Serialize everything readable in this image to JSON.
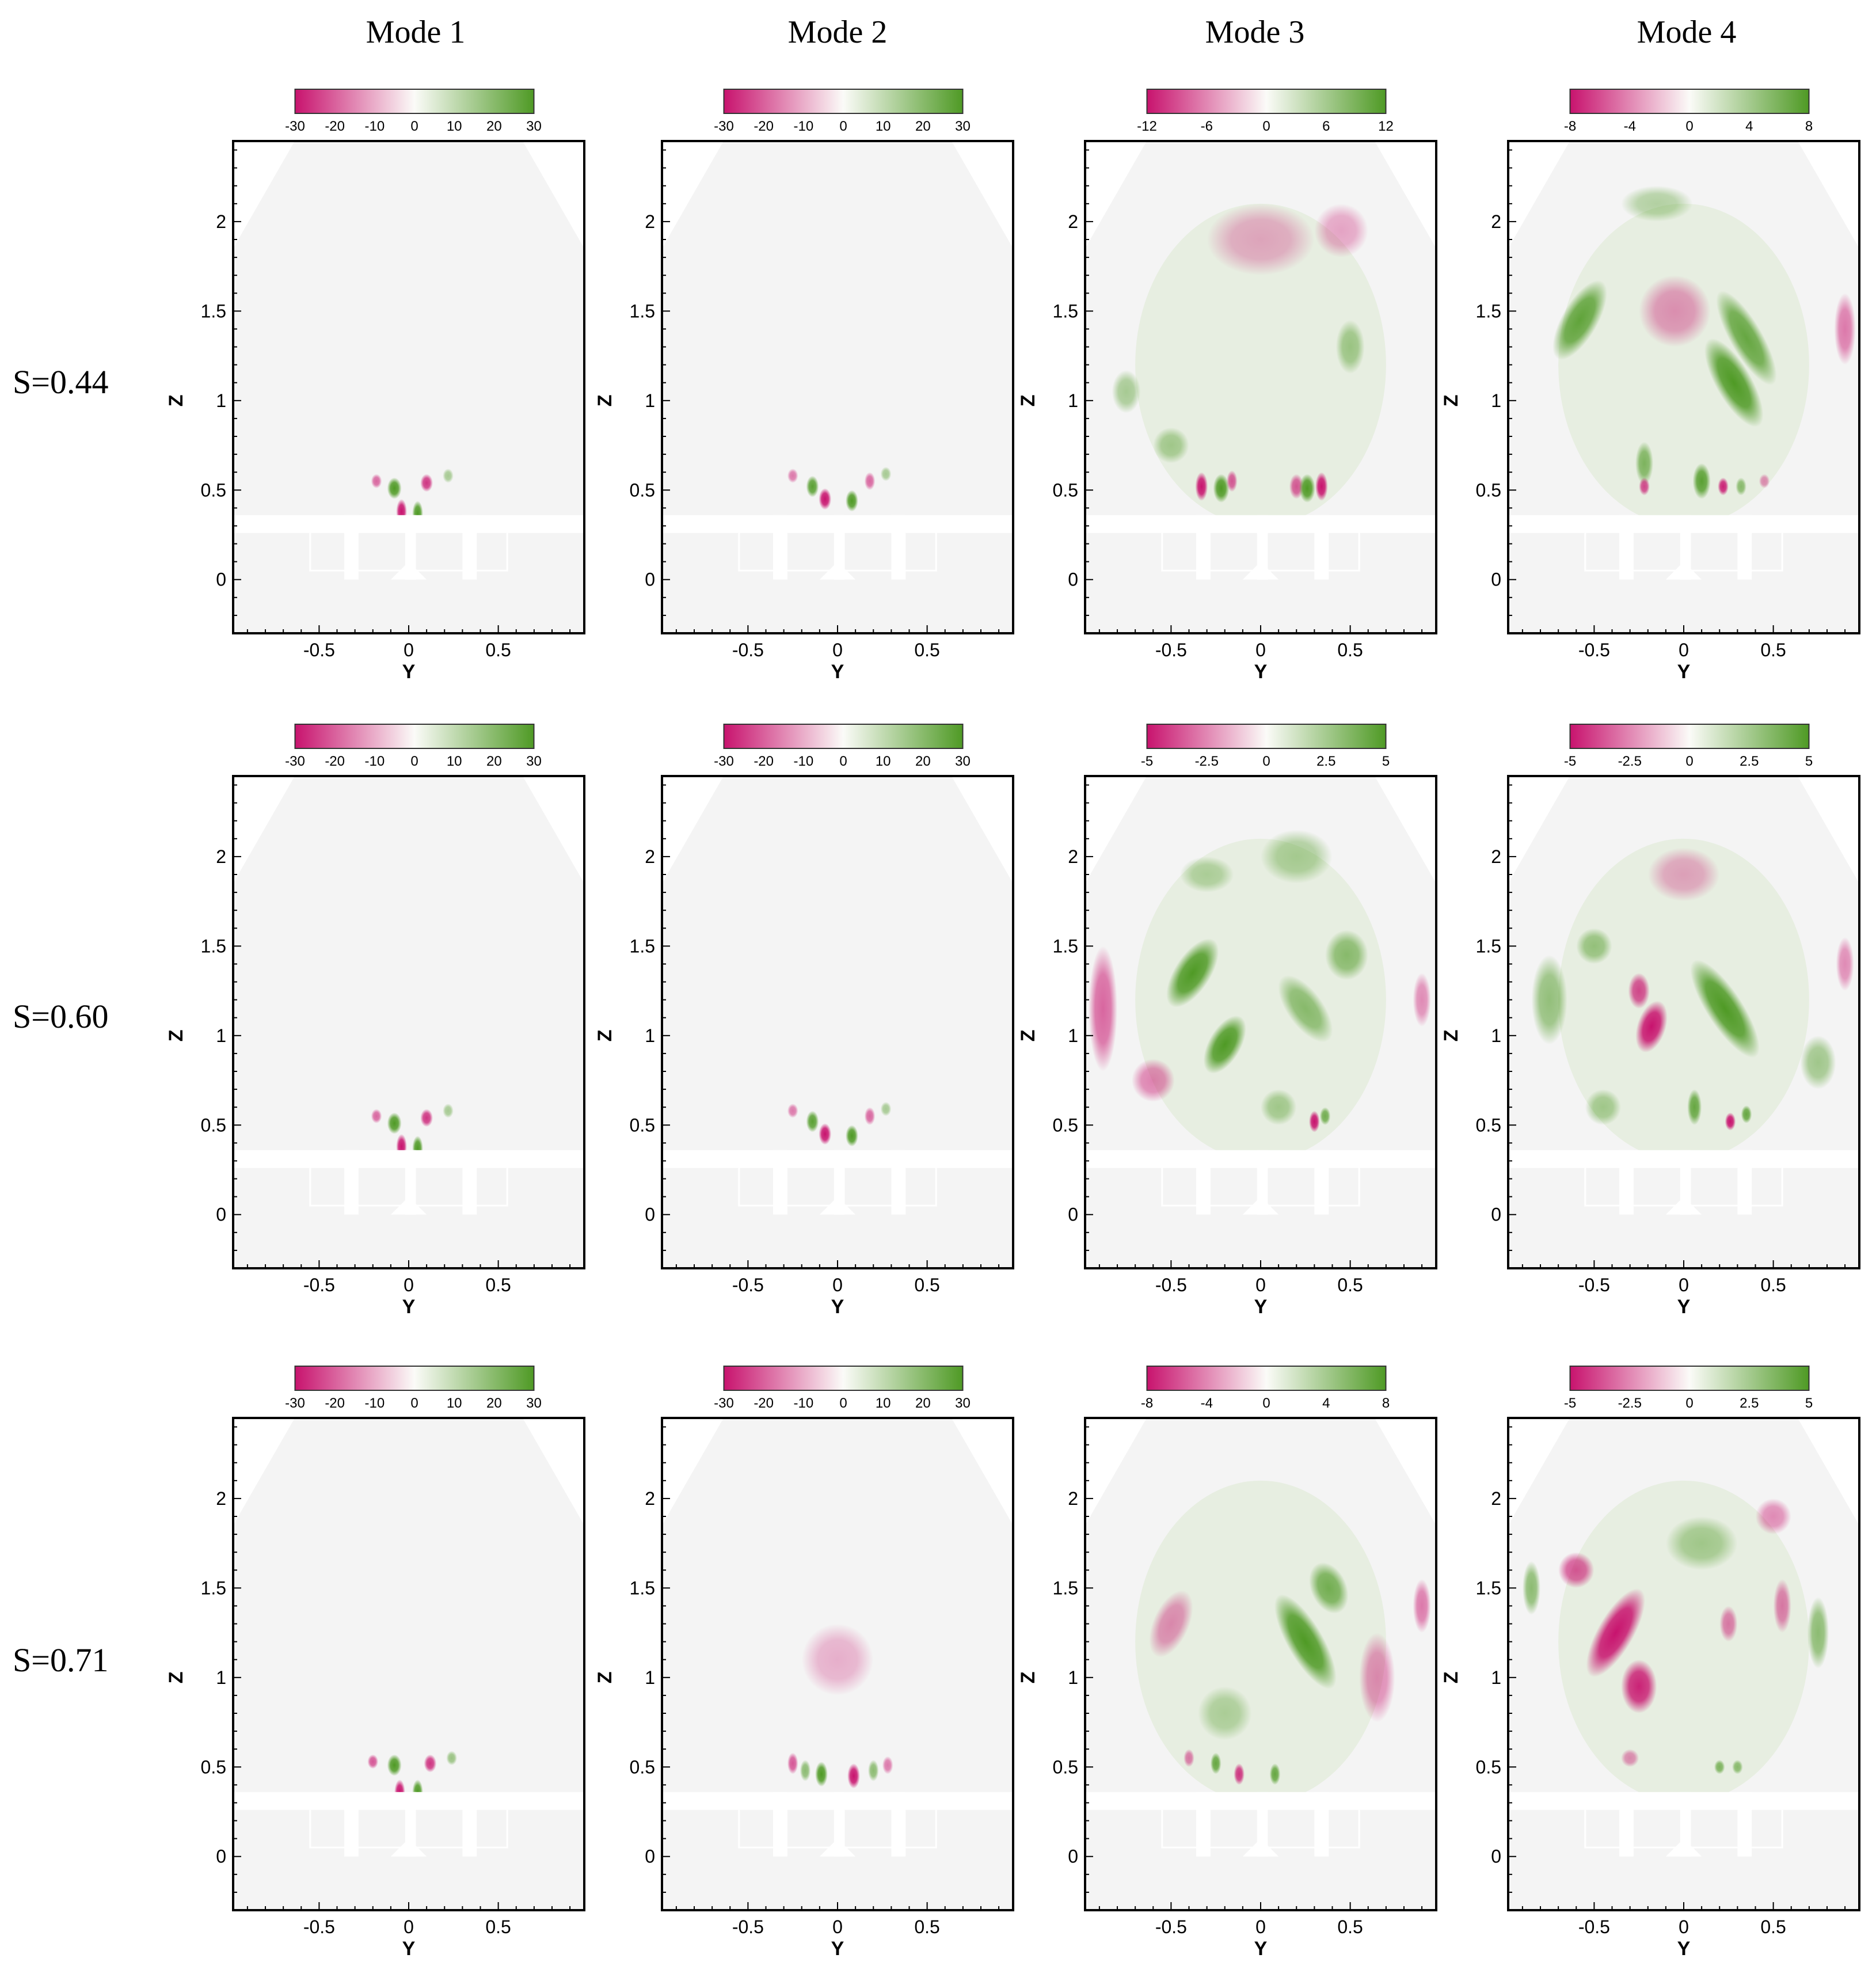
{
  "figure": {
    "mode_titles": [
      "Mode 1",
      "Mode 2",
      "Mode 3",
      "Mode 4"
    ],
    "row_labels": [
      "S=0.44",
      "S=0.60",
      "S=0.71"
    ],
    "colors": {
      "negative": "#c8136e",
      "neutral": "#fbfbf8",
      "positive": "#4f9a25",
      "background": "#f4f4f4",
      "frame": "#000000"
    },
    "axes": {
      "xlabel": "Y",
      "ylabel": "Z",
      "x_range": [
        -0.98,
        0.98
      ],
      "y_range": [
        -0.3,
        2.45
      ],
      "x_ticks": [
        "-0.5",
        "0",
        "0.5"
      ],
      "x_tick_values": [
        -0.5,
        0,
        0.5
      ],
      "y_ticks": [
        "0",
        "0.5",
        "1",
        "1.5",
        "2"
      ],
      "y_tick_values": [
        0,
        0.5,
        1,
        1.5,
        2
      ]
    },
    "panels": [
      [
        {
          "colorbar": [
            "-30",
            "-20",
            "-10",
            "0",
            "10",
            "20",
            "30"
          ],
          "blobs": [
            [
              -0.18,
              0.55,
              0.03,
              0.04,
              -0.5
            ],
            [
              -0.08,
              0.51,
              0.04,
              0.06,
              1
            ],
            [
              0.1,
              0.54,
              0.035,
              0.05,
              -0.8
            ],
            [
              -0.04,
              0.38,
              0.03,
              0.07,
              -1
            ],
            [
              0.05,
              0.37,
              0.03,
              0.07,
              1
            ],
            [
              0.22,
              0.58,
              0.03,
              0.04,
              0.3
            ]
          ]
        },
        {
          "colorbar": [
            "-30",
            "-20",
            "-10",
            "0",
            "10",
            "20",
            "30"
          ],
          "blobs": [
            [
              -0.25,
              0.58,
              0.03,
              0.04,
              -0.4
            ],
            [
              -0.14,
              0.52,
              0.035,
              0.06,
              0.9
            ],
            [
              -0.07,
              0.45,
              0.035,
              0.06,
              -1
            ],
            [
              0.08,
              0.44,
              0.035,
              0.06,
              1
            ],
            [
              0.18,
              0.55,
              0.03,
              0.05,
              -0.5
            ],
            [
              0.27,
              0.59,
              0.03,
              0.04,
              0.3
            ]
          ]
        },
        {
          "colorbar": [
            "-12",
            "-6",
            "0",
            "6",
            "12"
          ],
          "blobs": [
            [
              -0.33,
              0.52,
              0.035,
              0.08,
              -1
            ],
            [
              -0.22,
              0.51,
              0.045,
              0.08,
              1
            ],
            [
              -0.16,
              0.55,
              0.03,
              0.06,
              -0.6
            ],
            [
              0.2,
              0.52,
              0.04,
              0.07,
              -0.6
            ],
            [
              0.26,
              0.51,
              0.045,
              0.08,
              1
            ],
            [
              0.34,
              0.52,
              0.035,
              0.08,
              -1
            ],
            [
              -0.5,
              0.75,
              0.1,
              0.1,
              0.3
            ],
            [
              0.5,
              1.3,
              0.08,
              0.15,
              0.35
            ],
            [
              -0.75,
              1.05,
              0.08,
              0.12,
              0.3
            ],
            [
              0.0,
              1.9,
              0.3,
              0.2,
              -0.12
            ],
            [
              0.45,
              1.95,
              0.15,
              0.15,
              -0.15
            ]
          ]
        },
        {
          "colorbar": [
            "-8",
            "-4",
            "0",
            "4",
            "8"
          ],
          "blobs": [
            [
              -0.58,
              1.45,
              0.1,
              0.25,
              0.85,
              0.5
            ],
            [
              0.28,
              1.1,
              0.1,
              0.28,
              1,
              -0.5
            ],
            [
              0.35,
              1.35,
              0.09,
              0.3,
              0.8,
              -0.5
            ],
            [
              -0.22,
              0.65,
              0.05,
              0.12,
              0.6
            ],
            [
              -0.22,
              0.52,
              0.03,
              0.05,
              -0.7
            ],
            [
              0.1,
              0.55,
              0.05,
              0.1,
              0.9
            ],
            [
              0.22,
              0.52,
              0.03,
              0.05,
              -0.9
            ],
            [
              0.32,
              0.52,
              0.03,
              0.05,
              0.5
            ],
            [
              0.45,
              0.55,
              0.03,
              0.04,
              -0.3
            ],
            [
              -0.05,
              1.5,
              0.2,
              0.2,
              -0.25
            ],
            [
              0.9,
              1.4,
              0.06,
              0.2,
              -0.4
            ],
            [
              -0.15,
              2.1,
              0.2,
              0.1,
              0.2
            ]
          ]
        }
      ],
      [
        {
          "colorbar": [
            "-30",
            "-20",
            "-10",
            "0",
            "10",
            "20",
            "30"
          ],
          "blobs": [
            [
              -0.18,
              0.55,
              0.03,
              0.04,
              -0.5
            ],
            [
              -0.08,
              0.51,
              0.04,
              0.06,
              1
            ],
            [
              0.1,
              0.54,
              0.035,
              0.05,
              -0.8
            ],
            [
              -0.04,
              0.38,
              0.03,
              0.07,
              -1
            ],
            [
              0.05,
              0.37,
              0.03,
              0.07,
              1
            ],
            [
              0.22,
              0.58,
              0.03,
              0.04,
              0.3
            ]
          ]
        },
        {
          "colorbar": [
            "-30",
            "-20",
            "-10",
            "0",
            "10",
            "20",
            "30"
          ],
          "blobs": [
            [
              -0.25,
              0.58,
              0.03,
              0.04,
              -0.4
            ],
            [
              -0.14,
              0.52,
              0.035,
              0.06,
              0.9
            ],
            [
              -0.07,
              0.45,
              0.035,
              0.06,
              -1
            ],
            [
              0.08,
              0.44,
              0.035,
              0.06,
              1
            ],
            [
              0.18,
              0.55,
              0.03,
              0.05,
              -0.5
            ],
            [
              0.27,
              0.59,
              0.03,
              0.04,
              0.3
            ]
          ]
        },
        {
          "colorbar": [
            "-5",
            "-2.5",
            "0",
            "2.5",
            "5"
          ],
          "blobs": [
            [
              -0.38,
              1.35,
              0.1,
              0.22,
              1,
              0.55
            ],
            [
              -0.2,
              0.95,
              0.09,
              0.18,
              1,
              0.5
            ],
            [
              0.25,
              1.15,
              0.1,
              0.22,
              0.5,
              -0.6
            ],
            [
              0.48,
              1.45,
              0.12,
              0.14,
              0.5
            ],
            [
              0.3,
              0.52,
              0.03,
              0.06,
              -1
            ],
            [
              0.36,
              0.55,
              0.03,
              0.05,
              0.7
            ],
            [
              -0.88,
              1.15,
              0.08,
              0.35,
              -0.5
            ],
            [
              -0.6,
              0.75,
              0.12,
              0.12,
              -0.35
            ],
            [
              0.1,
              0.6,
              0.1,
              0.1,
              0.3
            ],
            [
              0.2,
              2.0,
              0.2,
              0.15,
              0.25
            ],
            [
              0.9,
              1.2,
              0.05,
              0.15,
              -0.3
            ],
            [
              -0.3,
              1.9,
              0.15,
              0.1,
              0.2
            ]
          ]
        },
        {
          "colorbar": [
            "-5",
            "-2.5",
            "0",
            "2.5",
            "5"
          ],
          "blobs": [
            [
              0.23,
              1.15,
              0.1,
              0.32,
              1,
              -0.55
            ],
            [
              -0.18,
              1.05,
              0.08,
              0.15,
              -1,
              0.3
            ],
            [
              -0.25,
              1.25,
              0.06,
              0.1,
              -0.7
            ],
            [
              -0.5,
              1.5,
              0.1,
              0.1,
              0.4
            ],
            [
              -0.75,
              1.2,
              0.1,
              0.25,
              0.45
            ],
            [
              0.26,
              0.52,
              0.03,
              0.05,
              -1
            ],
            [
              0.35,
              0.56,
              0.03,
              0.05,
              0.8
            ],
            [
              0.06,
              0.6,
              0.04,
              0.1,
              0.8
            ],
            [
              -0.45,
              0.6,
              0.1,
              0.1,
              0.3
            ],
            [
              0.75,
              0.85,
              0.1,
              0.15,
              0.35
            ],
            [
              0.9,
              1.4,
              0.05,
              0.15,
              -0.3
            ],
            [
              0.0,
              1.9,
              0.2,
              0.15,
              -0.15
            ]
          ]
        }
      ],
      [
        {
          "colorbar": [
            "-30",
            "-20",
            "-10",
            "0",
            "10",
            "20",
            "30"
          ],
          "blobs": [
            [
              -0.2,
              0.53,
              0.03,
              0.04,
              -0.6
            ],
            [
              -0.08,
              0.51,
              0.04,
              0.06,
              1
            ],
            [
              0.12,
              0.52,
              0.035,
              0.05,
              -0.8
            ],
            [
              -0.05,
              0.36,
              0.03,
              0.07,
              -1
            ],
            [
              0.05,
              0.36,
              0.03,
              0.07,
              1
            ],
            [
              0.24,
              0.55,
              0.03,
              0.04,
              0.4
            ]
          ]
        },
        {
          "colorbar": [
            "-30",
            "-20",
            "-10",
            "0",
            "10",
            "20",
            "30"
          ],
          "blobs": [
            [
              -0.25,
              0.52,
              0.03,
              0.06,
              -0.6
            ],
            [
              -0.18,
              0.48,
              0.03,
              0.06,
              0.5
            ],
            [
              -0.09,
              0.46,
              0.035,
              0.07,
              1
            ],
            [
              0.09,
              0.45,
              0.035,
              0.07,
              -1
            ],
            [
              0.2,
              0.48,
              0.03,
              0.06,
              0.5
            ],
            [
              0.28,
              0.51,
              0.03,
              0.05,
              -0.4
            ],
            [
              0.0,
              1.1,
              0.2,
              0.2,
              -0.08
            ]
          ]
        },
        {
          "colorbar": [
            "-8",
            "-4",
            "0",
            "4",
            "8"
          ],
          "blobs": [
            [
              0.25,
              1.2,
              0.1,
              0.3,
              1,
              -0.5
            ],
            [
              0.38,
              1.5,
              0.1,
              0.15,
              0.7,
              -0.4
            ],
            [
              -0.25,
              0.52,
              0.03,
              0.06,
              0.8
            ],
            [
              -0.12,
              0.46,
              0.03,
              0.06,
              -0.8
            ],
            [
              0.08,
              0.46,
              0.03,
              0.06,
              0.8
            ],
            [
              -0.4,
              0.55,
              0.03,
              0.05,
              -0.4
            ],
            [
              -0.5,
              1.3,
              0.1,
              0.2,
              -0.3,
              0.4
            ],
            [
              0.65,
              1.0,
              0.1,
              0.25,
              -0.3
            ],
            [
              0.9,
              1.4,
              0.05,
              0.15,
              -0.4
            ],
            [
              -0.2,
              0.8,
              0.15,
              0.15,
              0.2
            ]
          ]
        },
        {
          "colorbar": [
            "-5",
            "-2.5",
            "0",
            "2.5",
            "5"
          ],
          "blobs": [
            [
              -0.38,
              1.25,
              0.1,
              0.28,
              -1,
              0.5
            ],
            [
              -0.25,
              0.95,
              0.1,
              0.15,
              -0.9
            ],
            [
              -0.6,
              1.6,
              0.1,
              0.1,
              -0.6
            ],
            [
              0.25,
              1.3,
              0.05,
              0.1,
              -0.4
            ],
            [
              0.55,
              1.4,
              0.05,
              0.15,
              -0.4
            ],
            [
              0.75,
              1.25,
              0.06,
              0.2,
              0.5
            ],
            [
              -0.85,
              1.5,
              0.05,
              0.15,
              0.5
            ],
            [
              0.2,
              0.5,
              0.03,
              0.04,
              0.6
            ],
            [
              0.3,
              0.5,
              0.03,
              0.04,
              0.5
            ],
            [
              -0.3,
              0.55,
              0.05,
              0.05,
              -0.3
            ],
            [
              0.1,
              1.75,
              0.2,
              0.15,
              0.3
            ],
            [
              0.5,
              1.9,
              0.1,
              0.1,
              -0.3
            ]
          ]
        }
      ]
    ]
  }
}
